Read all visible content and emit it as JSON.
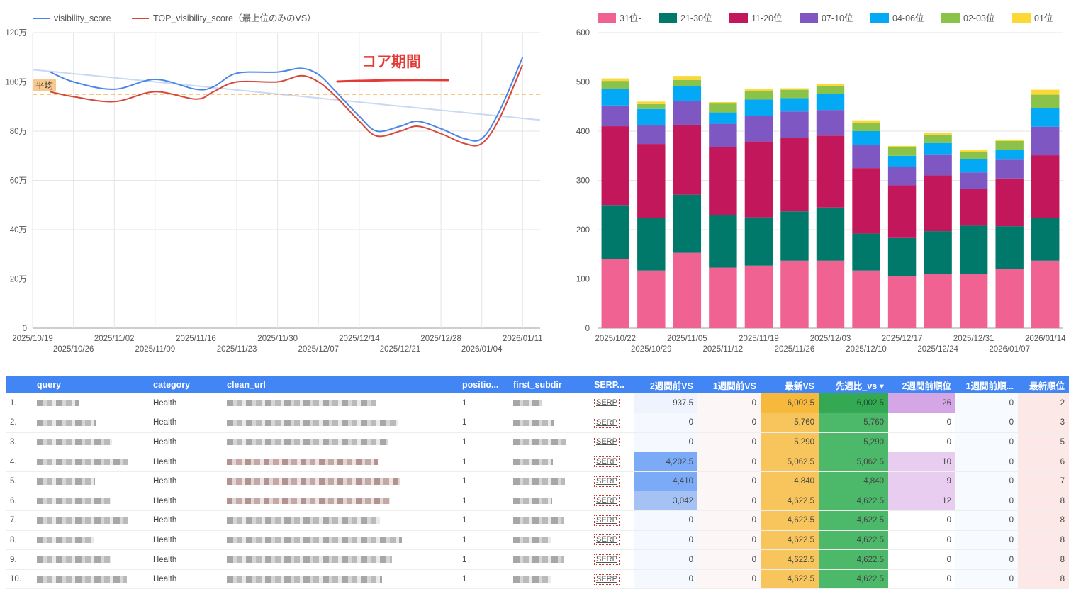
{
  "line_chart": {
    "legend": [
      {
        "name": "visibility_score",
        "color": "#4a86e8"
      },
      {
        "name": "TOP_visibility_score（最上位のみのVS）",
        "color": "#d5483b"
      }
    ],
    "y_tick_labels": [
      "0",
      "20万",
      "40万",
      "60万",
      "80万",
      "100万",
      "120万"
    ],
    "y_tick_values": [
      0,
      20,
      40,
      60,
      80,
      100,
      120
    ],
    "x_tick_labels_upper": [
      "2025/10/19",
      "2025/11/02",
      "2025/11/16",
      "2025/11/30",
      "2025/12/14",
      "2025/12/28",
      "2026/01/11"
    ],
    "x_tick_labels_lower": [
      "2025/10/26",
      "2025/11/09",
      "2025/11/23",
      "2025/12/07",
      "2025/12/21",
      "2026/01/04"
    ],
    "average_label": "平均",
    "average_value": 95,
    "annotation": "コア期間",
    "accent_color": "#e53935"
  },
  "bar_chart": {
    "legend": [
      {
        "name": "31位-",
        "color": "#f06292"
      },
      {
        "name": "21-30位",
        "color": "#00796b"
      },
      {
        "name": "11-20位",
        "color": "#c2185b"
      },
      {
        "name": "07-10位",
        "color": "#7e57c2"
      },
      {
        "name": "04-06位",
        "color": "#03a9f4"
      },
      {
        "name": "02-03位",
        "color": "#8bc34a"
      },
      {
        "name": "01位",
        "color": "#fdd835"
      }
    ],
    "y_tick_labels": [
      "0",
      "100",
      "200",
      "300",
      "400",
      "500",
      "600"
    ],
    "x_tick_labels_upper": [
      "2025/10/22",
      "2025/11/05",
      "2025/11/19",
      "2025/12/03",
      "2025/12/17",
      "2025/12/31",
      "2026/01/14"
    ],
    "x_tick_labels_lower": [
      "2025/10/29",
      "2025/11/12",
      "2025/11/26",
      "2025/12/10",
      "2025/12/24",
      "2026/01/07"
    ]
  },
  "chart_data": [
    {
      "type": "line",
      "title": "",
      "xlabel": "",
      "ylabel": "",
      "ylim": [
        0,
        120
      ],
      "y_unit": "万",
      "x_range": [
        "2025/10/19",
        "2026/01/14"
      ],
      "series": [
        {
          "name": "visibility_score",
          "points": [
            [
              "2025/10/22",
              104
            ],
            [
              "2025/10/26",
              100
            ],
            [
              "2025/11/02",
              97
            ],
            [
              "2025/11/09",
              101
            ],
            [
              "2025/11/16",
              97
            ],
            [
              "2025/11/19",
              98
            ],
            [
              "2025/11/23",
              103.5
            ],
            [
              "2025/11/30",
              104
            ],
            [
              "2025/12/04",
              105.5
            ],
            [
              "2025/12/07",
              103
            ],
            [
              "2025/12/10",
              96
            ],
            [
              "2025/12/14",
              86
            ],
            [
              "2025/12/17",
              80
            ],
            [
              "2025/12/21",
              82
            ],
            [
              "2025/12/24",
              84
            ],
            [
              "2025/12/28",
              81
            ],
            [
              "2026/01/01",
              77
            ],
            [
              "2026/01/04",
              77
            ],
            [
              "2026/01/07",
              88
            ],
            [
              "2026/01/11",
              110
            ]
          ]
        },
        {
          "name": "TOP_visibility_score（最上位のみのVS）",
          "points": [
            [
              "2025/10/22",
              96
            ],
            [
              "2025/10/26",
              94
            ],
            [
              "2025/11/02",
              92
            ],
            [
              "2025/11/09",
              96
            ],
            [
              "2025/11/16",
              93
            ],
            [
              "2025/11/19",
              96
            ],
            [
              "2025/11/23",
              100
            ],
            [
              "2025/11/30",
              100
            ],
            [
              "2025/12/04",
              102.5
            ],
            [
              "2025/12/07",
              100
            ],
            [
              "2025/12/10",
              94
            ],
            [
              "2025/12/14",
              84
            ],
            [
              "2025/12/17",
              78
            ],
            [
              "2025/12/21",
              80
            ],
            [
              "2025/12/24",
              82
            ],
            [
              "2025/12/28",
              79
            ],
            [
              "2026/01/01",
              75
            ],
            [
              "2026/01/04",
              75
            ],
            [
              "2026/01/07",
              85
            ],
            [
              "2026/01/11",
              107
            ]
          ]
        }
      ],
      "reference_line": {
        "label": "平均",
        "value": 95
      }
    },
    {
      "type": "bar",
      "stacked": true,
      "title": "",
      "ylim": [
        0,
        600
      ],
      "categories": [
        "2025/10/22",
        "2025/10/29",
        "2025/11/05",
        "2025/11/12",
        "2025/11/19",
        "2025/11/26",
        "2025/12/03",
        "2025/12/10",
        "2025/12/17",
        "2025/12/24",
        "2025/12/31",
        "2026/01/07",
        "2026/01/14"
      ],
      "series": [
        {
          "name": "31位-",
          "values": [
            140,
            117,
            153,
            123,
            127,
            137,
            137,
            117,
            105,
            110,
            110,
            120,
            137
          ]
        },
        {
          "name": "21-30位",
          "values": [
            110,
            107,
            118,
            107,
            98,
            100,
            108,
            75,
            78,
            87,
            98,
            87,
            87
          ]
        },
        {
          "name": "11-20位",
          "values": [
            160,
            150,
            142,
            137,
            154,
            150,
            146,
            133,
            107,
            113,
            75,
            97,
            127
          ]
        },
        {
          "name": "07-10位",
          "values": [
            42,
            38,
            48,
            48,
            52,
            53,
            52,
            47,
            37,
            43,
            33,
            38,
            58
          ]
        },
        {
          "name": "04-06位",
          "values": [
            33,
            33,
            30,
            23,
            33,
            27,
            33,
            28,
            23,
            23,
            27,
            20,
            38
          ]
        },
        {
          "name": "02-03位",
          "values": [
            17,
            10,
            13,
            18,
            17,
            17,
            15,
            17,
            17,
            17,
            15,
            18,
            27
          ]
        },
        {
          "name": "01位",
          "values": [
            5,
            5,
            8,
            3,
            5,
            3,
            5,
            5,
            3,
            3,
            3,
            3,
            10
          ]
        }
      ]
    }
  ],
  "table": {
    "columns": [
      "",
      "query",
      "category",
      "clean_url",
      "positio...",
      "first_subdir",
      "SERP...",
      "2週間前VS",
      "1週間前VS",
      "最新VS",
      "先週比_vs ▾",
      "2週間前順位",
      "1週間前順...",
      "最新順位"
    ],
    "rows": [
      {
        "idx": "1.",
        "category": "Health",
        "position": "1",
        "serp": "SERP",
        "vs2w": "937.5",
        "vs1w": "0",
        "vs_latest": "6,002.5",
        "vs_diff": "6,002.5",
        "rank2w": "26",
        "rank1w": "0",
        "rank_latest": "2"
      },
      {
        "idx": "2.",
        "category": "Health",
        "position": "1",
        "serp": "SERP",
        "vs2w": "0",
        "vs1w": "0",
        "vs_latest": "5,760",
        "vs_diff": "5,760",
        "rank2w": "0",
        "rank1w": "0",
        "rank_latest": "3"
      },
      {
        "idx": "3.",
        "category": "Health",
        "position": "1",
        "serp": "SERP",
        "vs2w": "0",
        "vs1w": "0",
        "vs_latest": "5,290",
        "vs_diff": "5,290",
        "rank2w": "0",
        "rank1w": "0",
        "rank_latest": "5"
      },
      {
        "idx": "4.",
        "category": "Health",
        "position": "1",
        "serp": "SERP",
        "vs2w": "4,202.5",
        "vs1w": "0",
        "vs_latest": "5,062.5",
        "vs_diff": "5,062.5",
        "rank2w": "10",
        "rank1w": "0",
        "rank_latest": "6"
      },
      {
        "idx": "5.",
        "category": "Health",
        "position": "1",
        "serp": "SERP",
        "vs2w": "4,410",
        "vs1w": "0",
        "vs_latest": "4,840",
        "vs_diff": "4,840",
        "rank2w": "9",
        "rank1w": "0",
        "rank_latest": "7"
      },
      {
        "idx": "6.",
        "category": "Health",
        "position": "1",
        "serp": "SERP",
        "vs2w": "3,042",
        "vs1w": "0",
        "vs_latest": "4,622.5",
        "vs_diff": "4,622.5",
        "rank2w": "12",
        "rank1w": "0",
        "rank_latest": "8"
      },
      {
        "idx": "7.",
        "category": "Health",
        "position": "1",
        "serp": "SERP",
        "vs2w": "0",
        "vs1w": "0",
        "vs_latest": "4,622.5",
        "vs_diff": "4,622.5",
        "rank2w": "0",
        "rank1w": "0",
        "rank_latest": "8"
      },
      {
        "idx": "8.",
        "category": "Health",
        "position": "1",
        "serp": "SERP",
        "vs2w": "0",
        "vs1w": "0",
        "vs_latest": "4,622.5",
        "vs_diff": "4,622.5",
        "rank2w": "0",
        "rank1w": "0",
        "rank_latest": "8"
      },
      {
        "idx": "9.",
        "category": "Health",
        "position": "1",
        "serp": "SERP",
        "vs2w": "0",
        "vs1w": "0",
        "vs_latest": "4,622.5",
        "vs_diff": "4,622.5",
        "rank2w": "0",
        "rank1w": "0",
        "rank_latest": "8"
      },
      {
        "idx": "10.",
        "category": "Health",
        "position": "1",
        "serp": "SERP",
        "vs2w": "0",
        "vs1w": "0",
        "vs_latest": "4,622.5",
        "vs_diff": "4,622.5",
        "rank2w": "0",
        "rank1w": "0",
        "rank_latest": "8"
      }
    ],
    "colors": {
      "header": "#4285f4",
      "vs2w_high": "#7baaf7",
      "vs2w_mid": "#a4c2f4",
      "vs2w_low": "#eef3fd",
      "vs_latest_high": "#f6b93b",
      "vs_latest": "#f7c55c",
      "vs_diff_high": "#34a853",
      "vs_diff": "#4cb86a",
      "rank2w_high": "#d5a6e6",
      "rank2w_mid": "#e8cdf0",
      "rank_latest": "#fce8e6"
    }
  }
}
